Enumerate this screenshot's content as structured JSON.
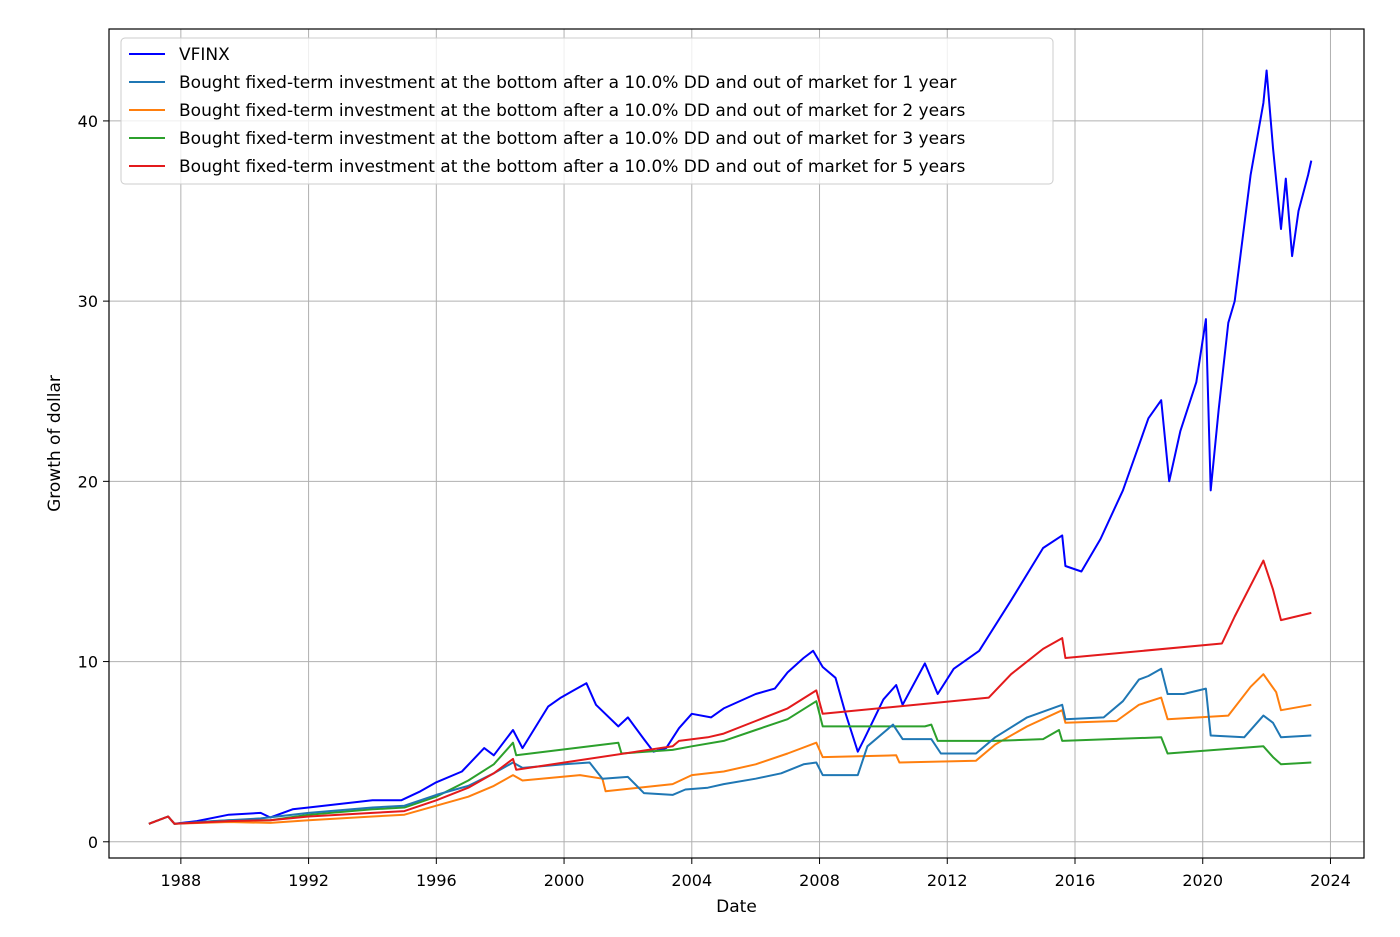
{
  "chart_data": {
    "type": "line",
    "title": "",
    "xlabel": "Date",
    "ylabel": "Growth of dollar",
    "xlim": [
      1985.75,
      2025.05
    ],
    "ylim": [
      -0.9,
      45.1
    ],
    "x_ticks": [
      1988,
      1992,
      1996,
      2000,
      2004,
      2008,
      2012,
      2016,
      2020,
      2024
    ],
    "y_ticks": [
      0,
      10,
      20,
      30,
      40
    ],
    "grid": true,
    "legend_position": "top-left",
    "series": [
      {
        "name": "VFINX",
        "color": "#0000ff",
        "points": [
          [
            1987.0,
            1.0
          ],
          [
            1987.6,
            1.4
          ],
          [
            1987.8,
            1.0
          ],
          [
            1988.5,
            1.15
          ],
          [
            1989.5,
            1.5
          ],
          [
            1990.5,
            1.6
          ],
          [
            1990.8,
            1.35
          ],
          [
            1991.5,
            1.8
          ],
          [
            1992.0,
            1.9
          ],
          [
            1993.0,
            2.1
          ],
          [
            1994.0,
            2.3
          ],
          [
            1994.9,
            2.3
          ],
          [
            1995.5,
            2.8
          ],
          [
            1996.0,
            3.3
          ],
          [
            1996.8,
            3.9
          ],
          [
            1997.5,
            5.2
          ],
          [
            1997.8,
            4.8
          ],
          [
            1998.4,
            6.2
          ],
          [
            1998.7,
            5.2
          ],
          [
            1999.5,
            7.5
          ],
          [
            1999.9,
            8.0
          ],
          [
            2000.3,
            8.4
          ],
          [
            2000.7,
            8.8
          ],
          [
            2001.0,
            7.6
          ],
          [
            2001.7,
            6.4
          ],
          [
            2002.0,
            6.9
          ],
          [
            2002.5,
            5.7
          ],
          [
            2002.8,
            5.0
          ],
          [
            2003.2,
            5.2
          ],
          [
            2003.6,
            6.3
          ],
          [
            2004.0,
            7.1
          ],
          [
            2004.6,
            6.9
          ],
          [
            2005.0,
            7.4
          ],
          [
            2006.0,
            8.2
          ],
          [
            2006.6,
            8.5
          ],
          [
            2007.0,
            9.4
          ],
          [
            2007.5,
            10.2
          ],
          [
            2007.8,
            10.6
          ],
          [
            2008.1,
            9.7
          ],
          [
            2008.5,
            9.1
          ],
          [
            2008.8,
            7.2
          ],
          [
            2009.2,
            5.0
          ],
          [
            2009.4,
            5.7
          ],
          [
            2010.0,
            7.9
          ],
          [
            2010.4,
            8.7
          ],
          [
            2010.6,
            7.6
          ],
          [
            2011.3,
            9.9
          ],
          [
            2011.7,
            8.2
          ],
          [
            2012.2,
            9.6
          ],
          [
            2013.0,
            10.6
          ],
          [
            2014.0,
            13.4
          ],
          [
            2015.0,
            16.3
          ],
          [
            2015.6,
            17.0
          ],
          [
            2015.7,
            15.3
          ],
          [
            2016.2,
            15.0
          ],
          [
            2016.8,
            16.8
          ],
          [
            2017.5,
            19.5
          ],
          [
            2018.0,
            22.0
          ],
          [
            2018.3,
            23.5
          ],
          [
            2018.7,
            24.5
          ],
          [
            2018.95,
            20.0
          ],
          [
            2019.3,
            22.8
          ],
          [
            2019.8,
            25.5
          ],
          [
            2020.1,
            29.0
          ],
          [
            2020.25,
            19.5
          ],
          [
            2020.5,
            24.0
          ],
          [
            2020.8,
            28.8
          ],
          [
            2021.0,
            30.0
          ],
          [
            2021.5,
            37.0
          ],
          [
            2021.9,
            41.0
          ],
          [
            2022.0,
            42.8
          ],
          [
            2022.2,
            38.5
          ],
          [
            2022.45,
            34.0
          ],
          [
            2022.6,
            36.8
          ],
          [
            2022.8,
            32.5
          ],
          [
            2023.0,
            35.0
          ],
          [
            2023.3,
            37.0
          ],
          [
            2023.4,
            37.8
          ]
        ]
      },
      {
        "name": "Bought fixed-term investment at the bottom after a 10.0% DD and out of market for 1 year",
        "color": "#1f77b4",
        "points": [
          [
            1987.0,
            1.0
          ],
          [
            1987.6,
            1.4
          ],
          [
            1987.8,
            1.0
          ],
          [
            1989.0,
            1.15
          ],
          [
            1990.5,
            1.3
          ],
          [
            1992.0,
            1.6
          ],
          [
            1994.0,
            1.9
          ],
          [
            1995.0,
            2.0
          ],
          [
            1996.0,
            2.6
          ],
          [
            1997.0,
            3.1
          ],
          [
            1997.8,
            3.8
          ],
          [
            1998.4,
            4.4
          ],
          [
            1998.7,
            4.1
          ],
          [
            2000.0,
            4.3
          ],
          [
            2000.8,
            4.4
          ],
          [
            2001.2,
            3.5
          ],
          [
            2002.0,
            3.6
          ],
          [
            2002.5,
            2.7
          ],
          [
            2003.4,
            2.6
          ],
          [
            2003.8,
            2.9
          ],
          [
            2004.5,
            3.0
          ],
          [
            2005.0,
            3.2
          ],
          [
            2006.0,
            3.5
          ],
          [
            2006.8,
            3.8
          ],
          [
            2007.5,
            4.3
          ],
          [
            2007.9,
            4.4
          ],
          [
            2008.1,
            3.7
          ],
          [
            2009.2,
            3.7
          ],
          [
            2009.5,
            5.3
          ],
          [
            2010.3,
            6.5
          ],
          [
            2010.6,
            5.7
          ],
          [
            2011.5,
            5.7
          ],
          [
            2011.8,
            4.9
          ],
          [
            2012.9,
            4.9
          ],
          [
            2013.5,
            5.8
          ],
          [
            2014.5,
            6.9
          ],
          [
            2015.6,
            7.6
          ],
          [
            2015.7,
            6.8
          ],
          [
            2016.9,
            6.9
          ],
          [
            2017.5,
            7.8
          ],
          [
            2018.0,
            9.0
          ],
          [
            2018.3,
            9.2
          ],
          [
            2018.7,
            9.6
          ],
          [
            2018.9,
            8.2
          ],
          [
            2019.4,
            8.2
          ],
          [
            2020.1,
            8.5
          ],
          [
            2020.25,
            5.9
          ],
          [
            2021.3,
            5.8
          ],
          [
            2021.9,
            7.0
          ],
          [
            2022.2,
            6.6
          ],
          [
            2022.45,
            5.8
          ],
          [
            2023.4,
            5.9
          ]
        ]
      },
      {
        "name": "Bought fixed-term investment at the bottom after a 10.0% DD and out of market for 2 years",
        "color": "#ff7f0e",
        "points": [
          [
            1987.0,
            1.0
          ],
          [
            1987.6,
            1.4
          ],
          [
            1987.8,
            1.0
          ],
          [
            1989.5,
            1.1
          ],
          [
            1990.8,
            1.05
          ],
          [
            1992.0,
            1.2
          ],
          [
            1994.0,
            1.4
          ],
          [
            1995.0,
            1.5
          ],
          [
            1996.0,
            2.0
          ],
          [
            1997.0,
            2.5
          ],
          [
            1997.8,
            3.1
          ],
          [
            1998.4,
            3.7
          ],
          [
            1998.7,
            3.4
          ],
          [
            2000.5,
            3.7
          ],
          [
            2001.2,
            3.5
          ],
          [
            2001.3,
            2.8
          ],
          [
            2003.4,
            3.2
          ],
          [
            2004.0,
            3.7
          ],
          [
            2005.0,
            3.9
          ],
          [
            2006.0,
            4.3
          ],
          [
            2007.0,
            4.9
          ],
          [
            2007.9,
            5.5
          ],
          [
            2008.1,
            4.7
          ],
          [
            2010.4,
            4.8
          ],
          [
            2010.5,
            4.4
          ],
          [
            2012.9,
            4.5
          ],
          [
            2013.5,
            5.4
          ],
          [
            2014.5,
            6.4
          ],
          [
            2015.6,
            7.3
          ],
          [
            2015.7,
            6.6
          ],
          [
            2017.3,
            6.7
          ],
          [
            2018.0,
            7.6
          ],
          [
            2018.7,
            8.0
          ],
          [
            2018.9,
            6.8
          ],
          [
            2020.8,
            7.0
          ],
          [
            2021.5,
            8.6
          ],
          [
            2021.9,
            9.3
          ],
          [
            2022.3,
            8.3
          ],
          [
            2022.45,
            7.3
          ],
          [
            2023.4,
            7.6
          ]
        ]
      },
      {
        "name": "Bought fixed-term investment at the bottom after a 10.0% DD and out of market for 3 years",
        "color": "#2ca02c",
        "points": [
          [
            1987.0,
            1.0
          ],
          [
            1987.6,
            1.4
          ],
          [
            1987.8,
            1.0
          ],
          [
            1989.5,
            1.2
          ],
          [
            1990.8,
            1.2
          ],
          [
            1992.0,
            1.5
          ],
          [
            1994.0,
            1.8
          ],
          [
            1995.0,
            1.9
          ],
          [
            1996.0,
            2.5
          ],
          [
            1997.0,
            3.4
          ],
          [
            1997.8,
            4.3
          ],
          [
            1998.4,
            5.5
          ],
          [
            1998.5,
            4.8
          ],
          [
            2001.7,
            5.5
          ],
          [
            2001.8,
            4.9
          ],
          [
            2003.4,
            5.1
          ],
          [
            2004.0,
            5.3
          ],
          [
            2005.0,
            5.6
          ],
          [
            2006.0,
            6.2
          ],
          [
            2007.0,
            6.8
          ],
          [
            2007.9,
            7.8
          ],
          [
            2008.1,
            6.4
          ],
          [
            2011.3,
            6.4
          ],
          [
            2011.5,
            6.5
          ],
          [
            2011.7,
            5.6
          ],
          [
            2013.5,
            5.6
          ],
          [
            2015.0,
            5.7
          ],
          [
            2015.5,
            6.2
          ],
          [
            2015.6,
            5.6
          ],
          [
            2018.7,
            5.8
          ],
          [
            2018.9,
            4.9
          ],
          [
            2021.9,
            5.3
          ],
          [
            2022.2,
            4.7
          ],
          [
            2022.45,
            4.3
          ],
          [
            2023.4,
            4.4
          ]
        ]
      },
      {
        "name": "Bought fixed-term investment at the bottom after a 10.0% DD and out of market for 5 years",
        "color": "#e31a1c",
        "points": [
          [
            1987.0,
            1.0
          ],
          [
            1987.6,
            1.4
          ],
          [
            1987.8,
            1.0
          ],
          [
            1989.5,
            1.15
          ],
          [
            1990.8,
            1.2
          ],
          [
            1992.0,
            1.4
          ],
          [
            1994.0,
            1.6
          ],
          [
            1995.0,
            1.7
          ],
          [
            1996.0,
            2.3
          ],
          [
            1997.0,
            3.0
          ],
          [
            1997.8,
            3.8
          ],
          [
            1998.4,
            4.6
          ],
          [
            1998.5,
            4.0
          ],
          [
            2003.4,
            5.3
          ],
          [
            2003.6,
            5.6
          ],
          [
            2004.5,
            5.8
          ],
          [
            2005.0,
            6.0
          ],
          [
            2006.0,
            6.7
          ],
          [
            2007.0,
            7.4
          ],
          [
            2007.9,
            8.4
          ],
          [
            2008.1,
            7.1
          ],
          [
            2013.3,
            8.0
          ],
          [
            2014.0,
            9.3
          ],
          [
            2015.0,
            10.7
          ],
          [
            2015.6,
            11.3
          ],
          [
            2015.7,
            10.2
          ],
          [
            2020.6,
            11.0
          ],
          [
            2021.0,
            12.5
          ],
          [
            2021.9,
            15.6
          ],
          [
            2022.2,
            14.0
          ],
          [
            2022.45,
            12.3
          ],
          [
            2023.4,
            12.7
          ]
        ]
      }
    ]
  }
}
